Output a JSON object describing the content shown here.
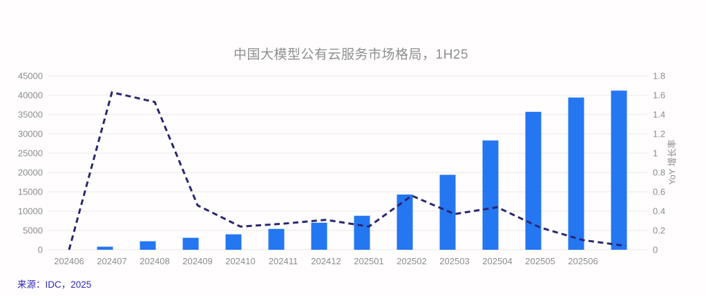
{
  "page": {
    "source": "来源：IDC，2025"
  },
  "colors": {
    "bar": "#2576f1",
    "line": "#2a2670",
    "grid": "#e9e7e7",
    "axis_text": "#8c8c8c",
    "title_text": "#8f8f8f",
    "source_text": "#2f28b8",
    "background": "#fffdfd"
  },
  "chart_data": {
    "type": "bar",
    "combo": "bar+dashed-line-dual-axis",
    "title": "中国大模型公有云服务市场格局，1H25",
    "categories": [
      "202406",
      "202407",
      "202408",
      "202409",
      "202410",
      "202411",
      "202412",
      "202501",
      "202502",
      "202503",
      "202504",
      "202505",
      "202506",
      ""
    ],
    "series": [
      {
        "type": "bar",
        "axis": "left",
        "values": [
          0,
          800,
          2200,
          3100,
          4000,
          5400,
          7000,
          8800,
          14300,
          19400,
          28300,
          35700,
          39400,
          41200
        ]
      },
      {
        "name": "YoY 增长率",
        "type": "line",
        "style": "dashed",
        "axis": "right",
        "values": [
          0,
          1.63,
          1.53,
          0.46,
          0.24,
          0.27,
          0.31,
          0.24,
          0.56,
          0.37,
          0.44,
          0.23,
          0.1,
          0.04
        ]
      }
    ],
    "left_axis": {
      "min": 0,
      "max": 45000,
      "tick_labels": [
        "0",
        "5000",
        "10000",
        "15000",
        "20000",
        "25000",
        "30000",
        "35000",
        "40000",
        "45000"
      ]
    },
    "right_axis": {
      "min": 0,
      "max": 1.8,
      "label": "YoY 增长率",
      "tick_labels": [
        "0",
        "0.2",
        "0.4",
        "0.6",
        "0.8",
        "1",
        "1.2",
        "1.4",
        "1.6",
        "1.8"
      ]
    },
    "grid": true,
    "legend": "none"
  }
}
